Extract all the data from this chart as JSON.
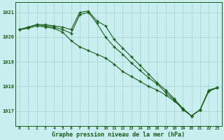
{
  "title": "Graphe pression niveau de la mer (hPa)",
  "background_color": "#c8eef0",
  "grid_color": "#a0d0d0",
  "line_color": "#1a5c1a",
  "x_labels": [
    "0",
    "1",
    "2",
    "3",
    "4",
    "5",
    "6",
    "7",
    "8",
    "9",
    "10",
    "11",
    "12",
    "13",
    "14",
    "15",
    "16",
    "17",
    "18",
    "19",
    "20",
    "21",
    "22",
    "23"
  ],
  "ylim": [
    1016.4,
    1021.4
  ],
  "yticks": [
    1017,
    1018,
    1019,
    1020,
    1021
  ],
  "series1": [
    1020.3,
    1020.4,
    1020.5,
    1020.5,
    1020.45,
    1020.4,
    1020.3,
    1021.0,
    1021.05,
    1020.65,
    1020.45,
    1019.9,
    1019.55,
    1019.2,
    1018.85,
    1018.5,
    1018.15,
    1017.85,
    1017.5,
    1017.1,
    1016.8,
    1017.05,
    1017.8,
    1017.95
  ],
  "series2": [
    1020.3,
    1020.4,
    1020.5,
    1020.45,
    1020.4,
    1020.3,
    1020.15,
    1020.9,
    1021.0,
    1020.55,
    1020.0,
    1019.6,
    1019.3,
    1018.95,
    1018.65,
    1018.35,
    1018.1,
    1017.75,
    1017.45,
    1017.05,
    1016.8,
    1017.05,
    1017.85,
    1017.95
  ],
  "series3": [
    1020.3,
    1020.35,
    1020.45,
    1020.4,
    1020.35,
    1020.2,
    1019.85,
    1019.6,
    1019.45,
    1019.3,
    1019.15,
    1018.9,
    1018.6,
    1018.4,
    1018.2,
    1018.0,
    1017.85,
    1017.65,
    1017.4,
    1017.1,
    1016.8,
    1017.05,
    1017.8,
    1017.95
  ]
}
